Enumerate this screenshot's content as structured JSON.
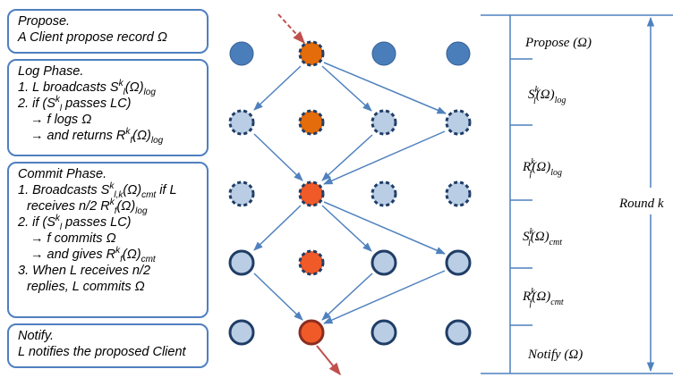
{
  "boxes": {
    "propose": {
      "title": "Propose.",
      "line1": "A Client propose record Ω"
    },
    "log": {
      "title": "Log Phase.",
      "l1a": "1. L broadcasts S",
      "l1b": "(Ω)",
      "l1sub": "log",
      "l2a": "2. if (S",
      "l2b": " passes LC)",
      "l3": "→ f  logs Ω",
      "l4a": "→ and returns R",
      "l4b": "(Ω)",
      "l4sub": "log"
    },
    "commit": {
      "title": "Commit Phase.",
      "l1a": "1. Broadcasts S",
      "l1b": "(Ω)",
      "l1sub": "cmt",
      "l1c": " if L",
      "l2a": "receives n/2 R",
      "l2b": "(Ω)",
      "l2sub": "log",
      "l3a": "2. if (S",
      "l3b": " passes LC)",
      "l4": "→ f  commits Ω",
      "l5a": "→ and gives R",
      "l5b": "(Ω)",
      "l5sub": "cmt",
      "l6": "3. When L receives n/2",
      "l7": "replies, L commits Ω"
    },
    "notify": {
      "title": "Notify.",
      "line1": "L notifies the proposed Client"
    }
  },
  "scripts": {
    "k": "k",
    "l": "l",
    "f": "f",
    "lk": "l,k"
  },
  "right": {
    "propose": "Propose (Ω)",
    "slog_main": "S",
    "slog_paren": "(Ω)",
    "slog_sub": "log",
    "rlog_main": "R",
    "rlog_paren": "(Ω)",
    "rlog_sub": "log",
    "round": "Round k",
    "scmt_main": "S",
    "scmt_paren": "(Ω)",
    "scmt_sub": "cmt",
    "rcmt_main": "R",
    "rcmt_paren": "(Ω)",
    "rcmt_sub": "cmt",
    "notify": "Notify (Ω)"
  },
  "colors": {
    "border": "#4f7fbf",
    "node_blue": "#4a7ebb",
    "node_light": "#b9cde5",
    "node_dark_stroke": "#1f3d66",
    "leader_orange": "#e46c0a",
    "leader_red": "#f05a28",
    "arrow": "#4f81bd",
    "red_arrow": "#c0504d"
  }
}
